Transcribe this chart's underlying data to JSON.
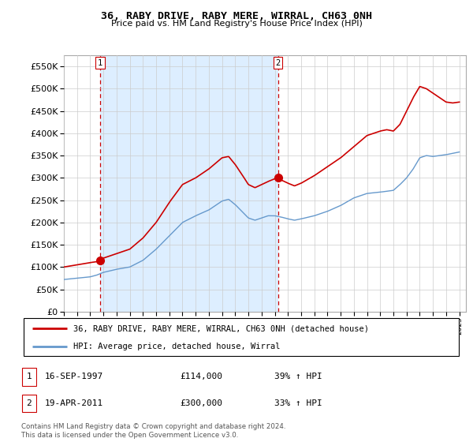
{
  "title": "36, RABY DRIVE, RABY MERE, WIRRAL, CH63 0NH",
  "subtitle": "Price paid vs. HM Land Registry's House Price Index (HPI)",
  "sale1_t": 1997.75,
  "sale1_price": 114000,
  "sale2_t": 2011.25,
  "sale2_price": 300000,
  "legend_line1": "36, RABY DRIVE, RABY MERE, WIRRAL, CH63 0NH (detached house)",
  "legend_line2": "HPI: Average price, detached house, Wirral",
  "table_row1": [
    "1",
    "16-SEP-1997",
    "£114,000",
    "39% ↑ HPI"
  ],
  "table_row2": [
    "2",
    "19-APR-2011",
    "£300,000",
    "33% ↑ HPI"
  ],
  "footer": "Contains HM Land Registry data © Crown copyright and database right 2024.\nThis data is licensed under the Open Government Licence v3.0.",
  "hpi_color": "#6699cc",
  "price_color": "#cc0000",
  "vline_color": "#cc0000",
  "grid_color": "#cccccc",
  "bg_between_color": "#ddeeff",
  "ylim_min": 0,
  "ylim_max": 575000,
  "yticks": [
    0,
    50000,
    100000,
    150000,
    200000,
    250000,
    300000,
    350000,
    400000,
    450000,
    500000,
    550000
  ],
  "hpi_base_points_x": [
    1995.0,
    1996.0,
    1997.0,
    1997.5,
    1998.0,
    1999.0,
    2000.0,
    2001.0,
    2002.0,
    2003.0,
    2004.0,
    2005.0,
    2006.0,
    2007.0,
    2007.5,
    2008.0,
    2008.5,
    2009.0,
    2009.5,
    2010.0,
    2010.5,
    2011.0,
    2011.5,
    2012.0,
    2012.5,
    2013.0,
    2014.0,
    2015.0,
    2016.0,
    2017.0,
    2018.0,
    2019.0,
    2020.0,
    2020.5,
    2021.0,
    2021.5,
    2022.0,
    2022.5,
    2023.0,
    2023.5,
    2024.0,
    2024.5,
    2025.0
  ],
  "hpi_base_points_y": [
    72000,
    75000,
    78000,
    82000,
    88000,
    95000,
    100000,
    115000,
    140000,
    170000,
    200000,
    215000,
    228000,
    248000,
    252000,
    240000,
    225000,
    210000,
    205000,
    210000,
    215000,
    215000,
    212000,
    208000,
    205000,
    208000,
    215000,
    225000,
    238000,
    255000,
    265000,
    268000,
    272000,
    285000,
    300000,
    320000,
    345000,
    350000,
    348000,
    350000,
    352000,
    355000,
    358000
  ],
  "red_base_points_x": [
    1995.0,
    1996.0,
    1997.0,
    1997.5,
    1997.75,
    1998.0,
    1999.0,
    2000.0,
    2001.0,
    2002.0,
    2003.0,
    2004.0,
    2005.0,
    2006.0,
    2007.0,
    2007.5,
    2008.0,
    2008.5,
    2009.0,
    2009.5,
    2010.0,
    2010.5,
    2011.0,
    2011.25,
    2011.5,
    2012.0,
    2012.5,
    2013.0,
    2014.0,
    2015.0,
    2016.0,
    2017.0,
    2018.0,
    2019.0,
    2019.5,
    2020.0,
    2020.5,
    2021.0,
    2021.5,
    2022.0,
    2022.5,
    2023.0,
    2023.5,
    2024.0,
    2024.5,
    2025.0
  ],
  "red_base_points_y": [
    100000,
    105000,
    110000,
    112000,
    114000,
    120000,
    130000,
    140000,
    165000,
    200000,
    245000,
    285000,
    300000,
    320000,
    345000,
    348000,
    330000,
    308000,
    285000,
    278000,
    285000,
    292000,
    298000,
    300000,
    295000,
    288000,
    282000,
    288000,
    305000,
    325000,
    345000,
    370000,
    395000,
    405000,
    408000,
    405000,
    420000,
    450000,
    480000,
    505000,
    500000,
    490000,
    480000,
    470000,
    468000,
    470000
  ]
}
